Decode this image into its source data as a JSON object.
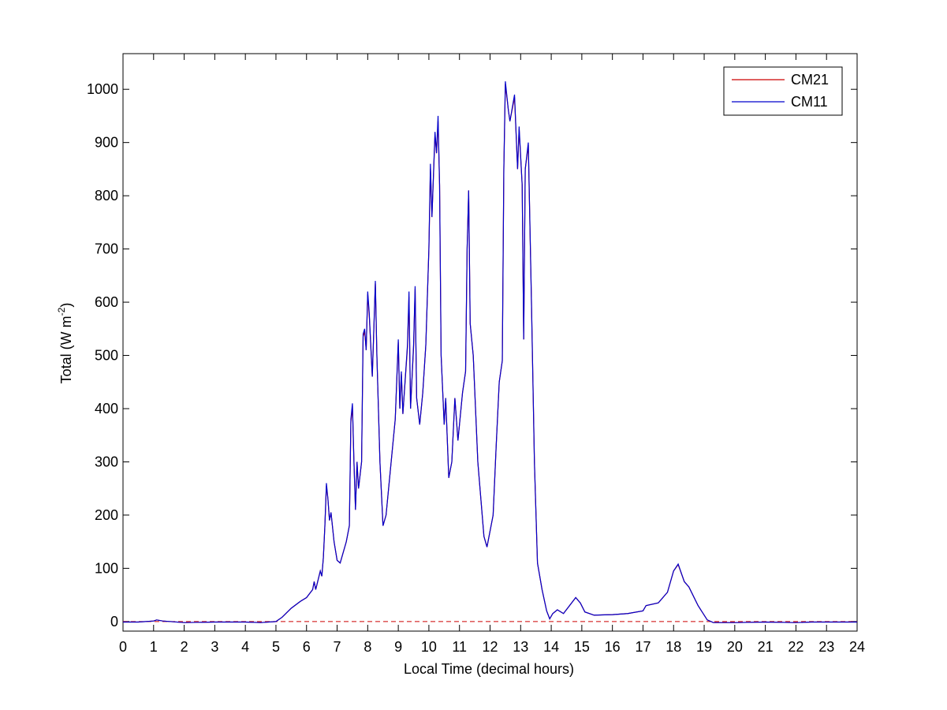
{
  "chart_data": {
    "type": "line",
    "xlabel": "Local Time (decimal hours)",
    "ylabel": {
      "text": "Total (W m",
      "superscript": "-2",
      "suffix": ")"
    },
    "xlim": [
      0,
      24
    ],
    "xticks": [
      0,
      1,
      2,
      3,
      4,
      5,
      6,
      7,
      8,
      9,
      10,
      11,
      12,
      13,
      14,
      15,
      16,
      17,
      18,
      19,
      20,
      21,
      22,
      23,
      24
    ],
    "ylim": [
      -18,
      1067
    ],
    "yticks": [
      0,
      100,
      200,
      300,
      400,
      500,
      600,
      700,
      800,
      900,
      1000
    ],
    "legend": "upper right",
    "hline": {
      "value": 0,
      "color": "#cc0000",
      "style": "dashed"
    },
    "x": [
      0,
      0.5,
      1,
      1.1,
      1.3,
      2,
      3,
      4,
      4.5,
      5,
      5.2,
      5.5,
      5.8,
      6,
      6.2,
      6.25,
      6.3,
      6.45,
      6.5,
      6.55,
      6.6,
      6.65,
      6.7,
      6.75,
      6.8,
      6.9,
      7,
      7.1,
      7.3,
      7.4,
      7.45,
      7.5,
      7.55,
      7.6,
      7.65,
      7.7,
      7.8,
      7.85,
      7.9,
      7.95,
      8,
      8.05,
      8.15,
      8.25,
      8.3,
      8.4,
      8.5,
      8.6,
      8.8,
      8.9,
      9,
      9.05,
      9.1,
      9.15,
      9.3,
      9.35,
      9.4,
      9.5,
      9.55,
      9.6,
      9.7,
      9.8,
      9.9,
      10,
      10.05,
      10.1,
      10.2,
      10.25,
      10.3,
      10.35,
      10.4,
      10.5,
      10.55,
      10.65,
      10.75,
      10.85,
      10.95,
      11.1,
      11.2,
      11.25,
      11.3,
      11.35,
      11.45,
      11.6,
      11.8,
      11.9,
      12.1,
      12.2,
      12.3,
      12.4,
      12.45,
      12.5,
      12.6,
      12.65,
      12.8,
      12.9,
      12.95,
      13.05,
      13.1,
      13.15,
      13.25,
      13.35,
      13.45,
      13.55,
      13.7,
      13.85,
      13.95,
      14.05,
      14.2,
      14.4,
      14.6,
      14.8,
      14.95,
      15.1,
      15.4,
      16,
      16.5,
      17,
      17.1,
      17.5,
      17.8,
      18,
      18.15,
      18.35,
      18.5,
      18.8,
      19.1,
      19.3,
      20,
      21,
      22,
      22.5,
      23,
      24
    ],
    "series": [
      {
        "name": "CM21",
        "color": "#cc0000",
        "values": [
          -1,
          -1,
          1,
          3,
          1,
          -2,
          -1,
          -1,
          -2,
          0,
          8,
          25,
          38,
          45,
          60,
          75,
          60,
          95,
          85,
          120,
          180,
          255,
          230,
          190,
          205,
          150,
          115,
          110,
          150,
          180,
          375,
          405,
          300,
          210,
          300,
          250,
          300,
          535,
          545,
          510,
          615,
          575,
          460,
          635,
          500,
          300,
          180,
          200,
          320,
          380,
          525,
          400,
          465,
          390,
          515,
          610,
          400,
          515,
          625,
          420,
          370,
          430,
          520,
          700,
          850,
          760,
          915,
          880,
          940,
          820,
          500,
          370,
          420,
          270,
          300,
          420,
          340,
          430,
          470,
          700,
          810,
          560,
          500,
          300,
          160,
          140,
          200,
          330,
          450,
          490,
          850,
          1010,
          960,
          940,
          985,
          850,
          925,
          820,
          530,
          850,
          895,
          610,
          300,
          110,
          60,
          20,
          5,
          15,
          22,
          15,
          30,
          45,
          35,
          18,
          12,
          13,
          15,
          20,
          30,
          35,
          55,
          95,
          107,
          75,
          65,
          30,
          3,
          -2,
          -2,
          -1,
          -2,
          -1,
          -1,
          -1
        ]
      },
      {
        "name": "CM11",
        "color": "#0000cc",
        "values": [
          -1,
          -1,
          1,
          3,
          1,
          -2,
          -1,
          -1,
          -2,
          0,
          8,
          25,
          38,
          45,
          60,
          75,
          60,
          95,
          85,
          120,
          180,
          260,
          230,
          190,
          205,
          150,
          115,
          110,
          150,
          180,
          380,
          410,
          300,
          210,
          300,
          250,
          300,
          540,
          550,
          510,
          620,
          580,
          460,
          640,
          500,
          300,
          180,
          200,
          320,
          380,
          530,
          400,
          470,
          390,
          520,
          620,
          400,
          520,
          630,
          420,
          370,
          430,
          520,
          700,
          860,
          760,
          920,
          880,
          950,
          820,
          500,
          370,
          420,
          270,
          300,
          420,
          340,
          430,
          470,
          700,
          810,
          560,
          500,
          300,
          160,
          140,
          200,
          330,
          450,
          490,
          850,
          1015,
          960,
          940,
          990,
          850,
          930,
          820,
          530,
          850,
          900,
          610,
          300,
          110,
          60,
          20,
          5,
          15,
          22,
          15,
          30,
          45,
          35,
          18,
          12,
          13,
          15,
          20,
          30,
          35,
          55,
          95,
          108,
          75,
          65,
          30,
          3,
          -2,
          -2,
          -1,
          -2,
          -1,
          -1,
          -1
        ]
      }
    ]
  }
}
